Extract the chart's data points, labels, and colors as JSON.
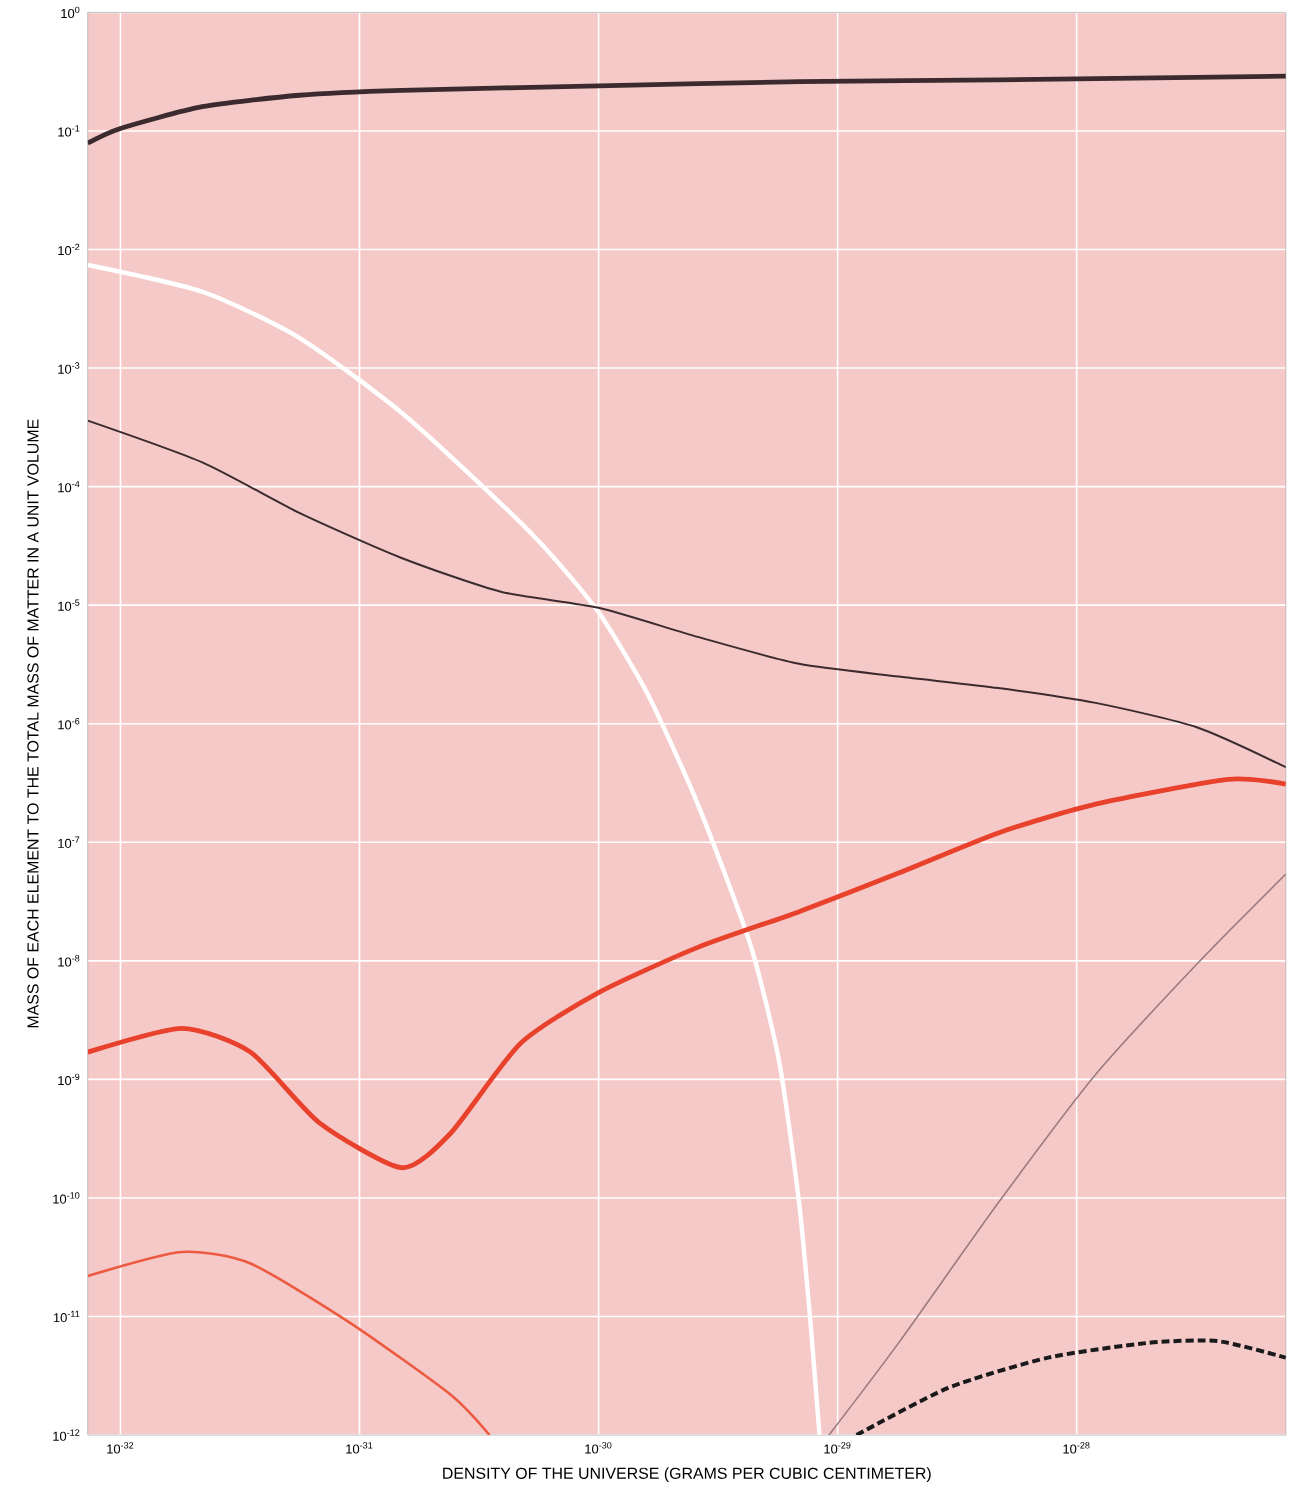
{
  "chart_data": {
    "type": "line",
    "xlabel": "DENSITY OF THE UNIVERSE (GRAMS PER CUBIC CENTIMETER)",
    "ylabel": "MASS OF EACH ELEMENT TO THE TOTAL MASS OF MATTER IN A UNIT VOLUME",
    "log": "xy",
    "grid": true,
    "marker": "none",
    "xlim": [
      7.3e-33,
      7.5e-28
    ],
    "ylim": [
      1e-12,
      1
    ],
    "xticks": [
      {
        "value": 1e-32,
        "label": "10$^{-32}$"
      },
      {
        "value": 1e-31,
        "label": "10$^{-31}$"
      },
      {
        "value": 1e-30,
        "label": "10$^{-30}$"
      },
      {
        "value": 1e-29,
        "label": "10$^{-29}$"
      },
      {
        "value": 1e-28,
        "label": "10$^{-28}$"
      }
    ],
    "yticks": [
      {
        "value": 1,
        "label": "10$^{0}$"
      },
      {
        "value": 0.1,
        "label": "10$^{-1}$"
      },
      {
        "value": 0.01,
        "label": "10$^{-2}$"
      },
      {
        "value": 0.001,
        "label": "10$^{-3}$"
      },
      {
        "value": 0.0001,
        "label": "10$^{-4}$"
      },
      {
        "value": 1e-05,
        "label": "10$^{-5}$"
      },
      {
        "value": 1e-06,
        "label": "10$^{-6}$"
      },
      {
        "value": 1e-07,
        "label": "10$^{-7}$"
      },
      {
        "value": 1e-08,
        "label": "10$^{-8}$"
      },
      {
        "value": 1e-09,
        "label": "10$^{-9}$"
      },
      {
        "value": 1e-10,
        "label": "10$^{-10}$"
      },
      {
        "value": 1e-11,
        "label": "10$^{-11}$"
      },
      {
        "value": 1e-12,
        "label": "10$^{-12}$"
      }
    ],
    "series": [
      {
        "color": "#3b2b2e",
        "x": [
          7.3e-33,
          1e-32,
          2.2e-32,
          5.6e-32,
          1.5e-31,
          1e-30,
          6.9e-30,
          4.7e-29,
          7.5e-28
        ],
        "values": [
          0.079,
          0.105,
          0.16,
          0.2,
          0.22,
          0.24,
          0.26,
          0.27,
          0.29
        ]
      },
      {
        "color": "#ffffff",
        "x": [
          7.3e-33,
          2.2e-32,
          5.6e-32,
          1.5e-31,
          3.9e-31,
          6.2e-31,
          1e-30,
          1.6e-30,
          2.6e-30,
          4.3e-30,
          5.7e-30,
          6.9e-30,
          7.7e-30,
          8.4e-30
        ],
        "values": [
          0.0074,
          0.0044,
          0.0018,
          0.00042,
          7.2e-05,
          2.8e-05,
          8.7e-06,
          1.8e-06,
          2.1e-07,
          1.4e-08,
          1.4e-09,
          9.1e-11,
          8.9e-12,
          1e-12
        ]
      },
      {
        "color": "#3b2b2e",
        "x": [
          7.3e-33,
          2.2e-32,
          5.6e-32,
          1.5e-31,
          3.9e-31,
          1e-30,
          2.6e-30,
          6.9e-30,
          1.8e-29,
          4.7e-29,
          1.2e-28,
          3.2e-28,
          7.5e-28
        ],
        "values": [
          0.00036,
          0.00016,
          6e-05,
          2.5e-05,
          1.3e-05,
          9.5e-06,
          5.4e-06,
          3.2e-06,
          2.5e-06,
          2e-06,
          1.5e-06,
          9.3e-07,
          4.3e-07
        ]
      },
      {
        "color": "#e8412c",
        "x": [
          7.3e-33,
          1.8e-32,
          3.5e-32,
          6.8e-32,
          1.5e-31,
          2.4e-31,
          4.7e-31,
          1e-30,
          2.6e-30,
          6.9e-30,
          1.8e-29,
          4.7e-29,
          1.2e-28,
          4.3e-28,
          7.5e-28
        ],
        "values": [
          1.7e-09,
          2.7e-09,
          1.7e-09,
          4.3e-10,
          1.8e-10,
          3.5e-10,
          2e-09,
          5.4e-09,
          1.3e-08,
          2.6e-08,
          5.5e-08,
          1.2e-07,
          2.1e-07,
          3.4e-07,
          3.1e-07
        ]
      },
      {
        "color": "#ec5a3f",
        "x": [
          7.3e-33,
          1.8e-32,
          3.5e-32,
          9.1e-32,
          2.4e-31,
          3.5e-31
        ],
        "values": [
          2.2e-11,
          3.5e-11,
          2.8e-11,
          8.9e-12,
          2.2e-12,
          1e-12
        ]
      },
      {
        "color": "#9a7b80",
        "x": [
          9.2e-30,
          1.8e-29,
          4.7e-29,
          1.2e-28,
          3.2e-28,
          7.5e-28
        ],
        "values": [
          1e-12,
          6e-12,
          9.1e-11,
          1.1e-09,
          9.5e-09,
          5.4e-08
        ]
      },
      {
        "color": "#1a1a1a",
        "line_style": "dashed",
        "x": [
          1.2e-29,
          2.9e-29,
          7.6e-29,
          2e-28,
          3.9e-28,
          7.5e-28
        ],
        "values": [
          1e-12,
          2.5e-12,
          4.5e-12,
          6e-12,
          6.2e-12,
          4.5e-12
        ]
      }
    ]
  }
}
